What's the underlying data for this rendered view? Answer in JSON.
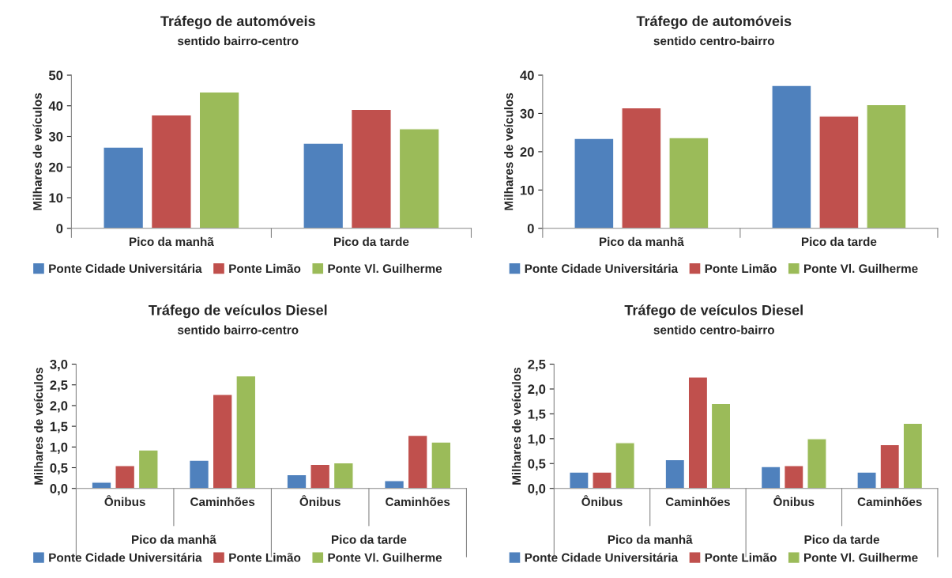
{
  "chart_data": [
    {
      "type": "bar",
      "title": "Tráfego de automóveis",
      "subtitle": "sentido bairro-centro",
      "ylabel": "Milhares de veículos",
      "categories": [
        "Pico da manhã",
        "Pico da tarde"
      ],
      "series": [
        {
          "name": "Ponte Cidade Universitária",
          "color": "#4f81bd",
          "values": [
            26.5,
            27.8
          ]
        },
        {
          "name": "Ponte Limão",
          "color": "#c0504d",
          "values": [
            37.0,
            38.8
          ]
        },
        {
          "name": "Ponte Vl. Guilherme",
          "color": "#9bbb59",
          "values": [
            44.5,
            32.5
          ]
        }
      ],
      "ylim": [
        0,
        50
      ],
      "yticks": [
        0,
        10,
        20,
        30,
        40,
        50
      ],
      "legend": "bottom"
    },
    {
      "type": "bar",
      "title": "Tráfego de automóveis",
      "subtitle": "sentido centro-bairro",
      "ylabel": "Milhares de veículos",
      "categories": [
        "Pico da manhã",
        "Pico da tarde"
      ],
      "series": [
        {
          "name": "Ponte Cidade Universitária",
          "color": "#4f81bd",
          "values": [
            23.5,
            37.3
          ]
        },
        {
          "name": "Ponte Limão",
          "color": "#c0504d",
          "values": [
            31.5,
            29.3
          ]
        },
        {
          "name": "Ponte Vl. Guilherme",
          "color": "#9bbb59",
          "values": [
            23.7,
            32.3
          ]
        }
      ],
      "ylim": [
        0,
        40
      ],
      "yticks": [
        0,
        10,
        20,
        30,
        40
      ],
      "legend": "bottom"
    },
    {
      "type": "bar",
      "title": "Tráfego de veículos Diesel",
      "subtitle": "sentido bairro-centro",
      "ylabel": "Milhares de veículos",
      "categories": [
        "Ônibus",
        "Caminhões",
        "Ônibus",
        "Caminhões"
      ],
      "annotations": [
        "Pico da manhã",
        "Pico da tarde"
      ],
      "series": [
        {
          "name": "Ponte Cidade Universitária",
          "color": "#4f81bd",
          "values": [
            0.15,
            0.68,
            0.33,
            0.19
          ]
        },
        {
          "name": "Ponte Limão",
          "color": "#c0504d",
          "values": [
            0.55,
            2.27,
            0.58,
            1.28
          ]
        },
        {
          "name": "Ponte Vl. Guilherme",
          "color": "#9bbb59",
          "values": [
            0.93,
            2.72,
            0.62,
            1.12
          ]
        }
      ],
      "ylim": [
        0,
        3.0
      ],
      "yticks": [
        {
          "value": 0,
          "label": "0,0"
        },
        {
          "value": 0.5,
          "label": "0,5"
        },
        {
          "value": 1.0,
          "label": "1,0"
        },
        {
          "value": 1.5,
          "label": "1,5"
        },
        {
          "value": 2.0,
          "label": "2,0"
        },
        {
          "value": 2.5,
          "label": "2,5"
        },
        {
          "value": 3.0,
          "label": "3,0"
        }
      ],
      "legend": "bottom"
    },
    {
      "type": "bar",
      "title": "Tráfego de veículos Diesel",
      "subtitle": "sentido centro-bairro",
      "ylabel": "Milhares de veículos",
      "categories": [
        "Ônibus",
        "Caminhões",
        "Ônibus",
        "Caminhões"
      ],
      "annotations": [
        "Pico da manhã",
        "Pico da tarde"
      ],
      "series": [
        {
          "name": "Ponte Cidade Universitária",
          "color": "#4f81bd",
          "values": [
            0.33,
            0.58,
            0.44,
            0.33
          ]
        },
        {
          "name": "Ponte Limão",
          "color": "#c0504d",
          "values": [
            0.33,
            2.24,
            0.46,
            0.88
          ]
        },
        {
          "name": "Ponte Vl. Guilherme",
          "color": "#9bbb59",
          "values": [
            0.92,
            1.71,
            1.0,
            1.31
          ]
        }
      ],
      "ylim": [
        0,
        2.5
      ],
      "yticks": [
        {
          "value": 0,
          "label": "0,0"
        },
        {
          "value": 0.5,
          "label": "0,5"
        },
        {
          "value": 1.0,
          "label": "1,0"
        },
        {
          "value": 1.5,
          "label": "1,5"
        },
        {
          "value": 2.0,
          "label": "2,0"
        },
        {
          "value": 2.5,
          "label": "2,5"
        }
      ],
      "legend": "bottom"
    }
  ]
}
